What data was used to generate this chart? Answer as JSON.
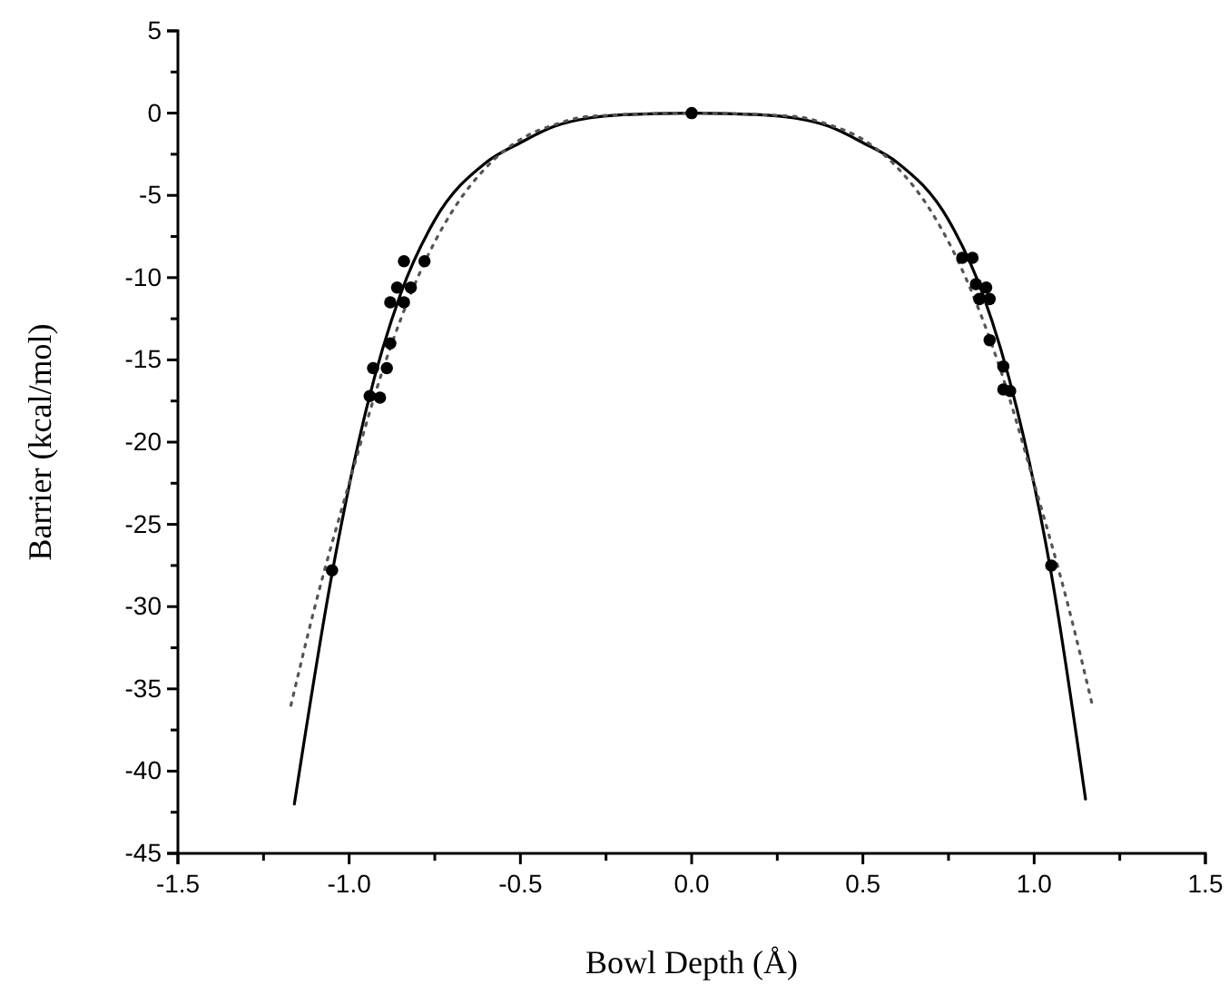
{
  "chart_data": {
    "type": "scatter",
    "xlabel": "Bowl Depth (Å)",
    "ylabel": "Barrier (kcal/mol)",
    "xlim": [
      -1.5,
      1.5
    ],
    "ylim": [
      -45,
      5
    ],
    "xticks": [
      {
        "value": -1.5,
        "label": "-1.5"
      },
      {
        "value": -1.25,
        "label": null
      },
      {
        "value": -1,
        "label": "-1.0"
      },
      {
        "value": -0.75,
        "label": null
      },
      {
        "value": -0.5,
        "label": "-0.5"
      },
      {
        "value": -0.25,
        "label": null
      },
      {
        "value": 0,
        "label": "0.0"
      },
      {
        "value": 0.25,
        "label": null
      },
      {
        "value": 0.5,
        "label": "0.5"
      },
      {
        "value": 0.75,
        "label": null
      },
      {
        "value": 1,
        "label": "1.0"
      },
      {
        "value": 1.25,
        "label": null
      },
      {
        "value": 1.5,
        "label": "1.5"
      }
    ],
    "yticks": [
      5,
      {
        "value": 2.5,
        "label": null
      },
      0,
      {
        "value": -2.5,
        "label": null
      },
      -5,
      {
        "value": -7.5,
        "label": null
      },
      -10,
      {
        "value": -12.5,
        "label": null
      },
      -15,
      {
        "value": -17.5,
        "label": null
      },
      -20,
      {
        "value": -22.5,
        "label": null
      },
      -25,
      {
        "value": -27.5,
        "label": null
      },
      -30,
      {
        "value": -32.5,
        "label": null
      },
      -35,
      {
        "value": -37.5,
        "label": null
      },
      -40,
      {
        "value": -42.5,
        "label": null
      },
      -45
    ],
    "grid": false,
    "series": [
      {
        "type": "line",
        "color": "#000000",
        "line_style": "solid",
        "x": [
          -1.16,
          -1.05,
          -0.95,
          -0.85,
          -0.75,
          -0.6,
          -0.5,
          -0.4,
          -0.3,
          -0.2,
          0,
          0.2,
          0.3,
          0.4,
          0.5,
          0.6,
          0.75,
          0.85,
          0.95,
          1.05,
          1.15
        ],
        "values": [
          -42,
          -28,
          -18,
          -11,
          -6.5,
          -3,
          -1.8,
          -0.8,
          -0.3,
          -0.1,
          0,
          -0.1,
          -0.3,
          -0.8,
          -1.8,
          -3,
          -6.5,
          -11,
          -18,
          -28,
          -41.7
        ]
      },
      {
        "type": "line",
        "color": "#555555",
        "line_style": "dotted",
        "x": [
          -1.17,
          -1.1,
          -1,
          -0.9,
          -0.8,
          -0.7,
          -0.6,
          -0.5,
          -0.4,
          -0.3,
          0,
          0.3,
          0.4,
          0.5,
          0.6,
          0.7,
          0.8,
          0.9,
          1,
          1.1,
          1.17
        ],
        "values": [
          -36,
          -30,
          -22.5,
          -15.5,
          -10,
          -6,
          -3.3,
          -1.6,
          -0.7,
          -0.2,
          0,
          -0.2,
          -0.7,
          -1.6,
          -3.3,
          -6,
          -10,
          -15.5,
          -22.5,
          -30,
          -36
        ]
      },
      {
        "color": "#000000",
        "marker": "circle",
        "x": [
          -0.84,
          -0.78,
          -0.86,
          -0.82,
          -0.88,
          -0.84,
          -0.88,
          -0.93,
          -0.89,
          -0.94,
          -0.91,
          -1.05,
          0,
          0.79,
          0.82,
          0.83,
          0.86,
          0.84,
          0.87,
          0.87,
          0.91,
          0.91,
          0.93,
          1.05
        ],
        "values": [
          -9,
          -9,
          -10.6,
          -10.6,
          -11.5,
          -11.5,
          -14,
          -15.5,
          -15.5,
          -17.2,
          -17.3,
          -27.8,
          0,
          -8.8,
          -8.8,
          -10.4,
          -10.6,
          -11.3,
          -11.3,
          -13.8,
          -15.4,
          -16.8,
          -16.9,
          -27.5
        ]
      }
    ]
  }
}
